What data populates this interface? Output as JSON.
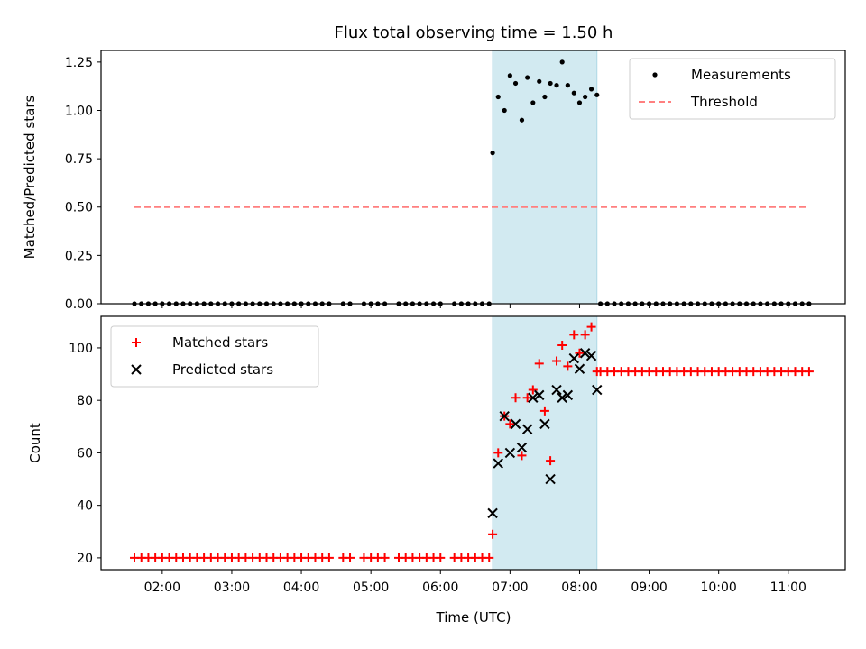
{
  "chart_data": {
    "type": "scatter",
    "title": "Flux total observing time = 1.50 h",
    "xlabel": "Time (UTC)",
    "x_unit": "hours UTC",
    "xlim": [
      1.12,
      11.82
    ],
    "x_ticks": [
      {
        "value": 2,
        "label": "02:00"
      },
      {
        "value": 3,
        "label": "03:00"
      },
      {
        "value": 4,
        "label": "04:00"
      },
      {
        "value": 5,
        "label": "05:00"
      },
      {
        "value": 6,
        "label": "06:00"
      },
      {
        "value": 7,
        "label": "07:00"
      },
      {
        "value": 8,
        "label": "08:00"
      },
      {
        "value": 9,
        "label": "09:00"
      },
      {
        "value": 10,
        "label": "10:00"
      },
      {
        "value": 11,
        "label": "11:00"
      }
    ],
    "observing_window": {
      "start": 6.75,
      "end": 8.25,
      "color": "#add8e6"
    },
    "panels": [
      {
        "ylabel": "Matched/Predicted stars",
        "ylim": [
          0,
          1.31
        ],
        "y_ticks": [
          "0.00",
          "0.25",
          "0.50",
          "0.75",
          "1.00",
          "1.25"
        ],
        "legend": {
          "position": "upper right"
        },
        "series": [
          {
            "name": "Measurements",
            "marker": "dot",
            "color": "#000000",
            "x": [
              1.6,
              1.7,
              1.8,
              1.9,
              2.0,
              2.1,
              2.2,
              2.3,
              2.4,
              2.5,
              2.6,
              2.7,
              2.8,
              2.9,
              3.0,
              3.1,
              3.2,
              3.3,
              3.4,
              3.5,
              3.6,
              3.7,
              3.8,
              3.9,
              4.0,
              4.1,
              4.2,
              4.3,
              4.4,
              4.6,
              4.7,
              4.9,
              5.0,
              5.1,
              5.2,
              5.4,
              5.5,
              5.6,
              5.7,
              5.8,
              5.9,
              6.0,
              6.2,
              6.3,
              6.4,
              6.5,
              6.6,
              6.7,
              6.75,
              6.83,
              6.92,
              7.0,
              7.08,
              7.17,
              7.25,
              7.33,
              7.42,
              7.5,
              7.58,
              7.67,
              7.75,
              7.83,
              7.92,
              8.0,
              8.08,
              8.17,
              8.25,
              8.3,
              8.4,
              8.5,
              8.6,
              8.7,
              8.8,
              8.9,
              9.0,
              9.1,
              9.2,
              9.3,
              9.4,
              9.5,
              9.6,
              9.7,
              9.8,
              9.9,
              10.0,
              10.1,
              10.2,
              10.3,
              10.4,
              10.5,
              10.6,
              10.7,
              10.8,
              10.9,
              11.0,
              11.1,
              11.2,
              11.3
            ],
            "y": [
              0,
              0,
              0,
              0,
              0,
              0,
              0,
              0,
              0,
              0,
              0,
              0,
              0,
              0,
              0,
              0,
              0,
              0,
              0,
              0,
              0,
              0,
              0,
              0,
              0,
              0,
              0,
              0,
              0,
              0,
              0,
              0,
              0,
              0,
              0,
              0,
              0,
              0,
              0,
              0,
              0,
              0,
              0,
              0,
              0,
              0,
              0,
              0,
              0.78,
              1.07,
              1.0,
              1.18,
              1.14,
              0.95,
              1.17,
              1.04,
              1.15,
              1.07,
              1.14,
              1.13,
              1.25,
              1.13,
              1.09,
              1.04,
              1.07,
              1.11,
              1.08,
              0,
              0,
              0,
              0,
              0,
              0,
              0,
              0,
              0,
              0,
              0,
              0,
              0,
              0,
              0,
              0,
              0,
              0,
              0,
              0,
              0,
              0,
              0,
              0,
              0,
              0,
              0,
              0,
              0,
              0,
              0
            ]
          },
          {
            "name": "Threshold",
            "marker": "dashed-line",
            "color": "#ff7f7f",
            "x": [
              1.6,
              11.3
            ],
            "y": [
              0.5,
              0.5
            ]
          }
        ]
      },
      {
        "ylabel": "Count",
        "ylim": [
          15.5,
          112
        ],
        "y_ticks": [
          "20",
          "40",
          "60",
          "80",
          "100"
        ],
        "legend": {
          "position": "upper left"
        },
        "series": [
          {
            "name": "Matched stars",
            "marker": "plus",
            "color": "#ff0000",
            "x": [
              1.6,
              1.7,
              1.8,
              1.9,
              2.0,
              2.1,
              2.2,
              2.3,
              2.4,
              2.5,
              2.6,
              2.7,
              2.8,
              2.9,
              3.0,
              3.1,
              3.2,
              3.3,
              3.4,
              3.5,
              3.6,
              3.7,
              3.8,
              3.9,
              4.0,
              4.1,
              4.2,
              4.3,
              4.4,
              4.6,
              4.7,
              4.9,
              5.0,
              5.1,
              5.2,
              5.4,
              5.5,
              5.6,
              5.7,
              5.8,
              5.9,
              6.0,
              6.2,
              6.3,
              6.4,
              6.5,
              6.6,
              6.7,
              6.75,
              6.83,
              6.92,
              7.0,
              7.08,
              7.17,
              7.25,
              7.33,
              7.42,
              7.5,
              7.58,
              7.67,
              7.75,
              7.83,
              7.92,
              8.0,
              8.08,
              8.17,
              8.25,
              8.3,
              8.4,
              8.5,
              8.6,
              8.7,
              8.8,
              8.9,
              9.0,
              9.1,
              9.2,
              9.3,
              9.4,
              9.5,
              9.6,
              9.7,
              9.8,
              9.9,
              10.0,
              10.1,
              10.2,
              10.3,
              10.4,
              10.5,
              10.6,
              10.7,
              10.8,
              10.9,
              11.0,
              11.1,
              11.2,
              11.3
            ],
            "y": [
              20,
              20,
              20,
              20,
              20,
              20,
              20,
              20,
              20,
              20,
              20,
              20,
              20,
              20,
              20,
              20,
              20,
              20,
              20,
              20,
              20,
              20,
              20,
              20,
              20,
              20,
              20,
              20,
              20,
              20,
              20,
              20,
              20,
              20,
              20,
              20,
              20,
              20,
              20,
              20,
              20,
              20,
              20,
              20,
              20,
              20,
              20,
              20,
              29,
              60,
              74,
              71,
              81,
              59,
              81,
              84,
              94,
              76,
              57,
              95,
              101,
              93,
              105,
              98,
              105,
              108,
              91,
              91,
              91,
              91,
              91,
              91,
              91,
              91,
              91,
              91,
              91,
              91,
              91,
              91,
              91,
              91,
              91,
              91,
              91,
              91,
              91,
              91,
              91,
              91,
              91,
              91,
              91,
              91,
              91,
              91,
              91,
              91
            ]
          },
          {
            "name": "Predicted stars",
            "marker": "x",
            "color": "#000000",
            "x": [
              6.75,
              6.83,
              6.92,
              7.0,
              7.08,
              7.17,
              7.25,
              7.33,
              7.42,
              7.5,
              7.58,
              7.67,
              7.75,
              7.83,
              7.92,
              8.0,
              8.08,
              8.17,
              8.25
            ],
            "y": [
              37,
              56,
              74,
              60,
              71,
              62,
              69,
              81,
              82,
              71,
              50,
              84,
              81,
              82,
              96,
              92,
              98,
              97,
              84
            ]
          }
        ]
      }
    ]
  }
}
